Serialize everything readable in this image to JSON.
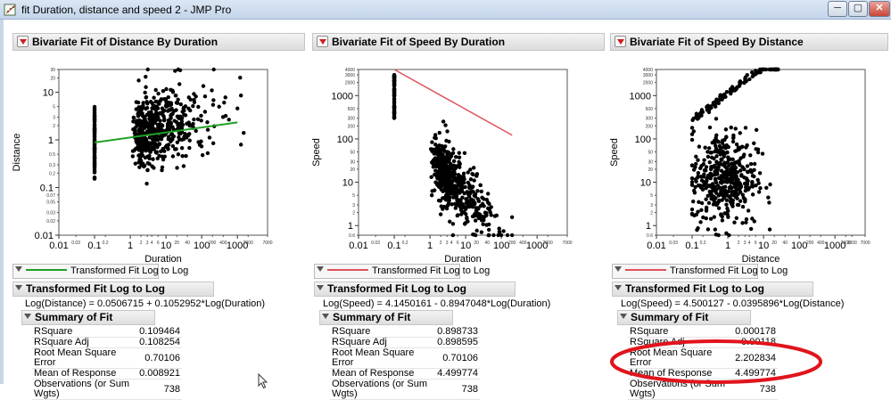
{
  "window": {
    "title": "fit Duration, distance and speed 2 - JMP Pro",
    "minimize": "─",
    "maximize": "▢",
    "close": "✕"
  },
  "colors": {
    "green_fit": "#1fa023",
    "red_fit": "#e0525a",
    "annotation": "#e1141c"
  },
  "panels": [
    {
      "title": "Bivariate Fit of Distance By Duration",
      "xlabel": "Duration",
      "ylabel": "Distance",
      "fit_color": "#1fa023",
      "fit_label": "Transformed Fit Log to Log",
      "fit_header": "Transformed Fit Log to Log",
      "equation": "Log(Distance) = 0.0506715 + 0.1052952*Log(Duration)",
      "summary_title": "Summary of Fit",
      "summary": [
        {
          "label": "RSquare",
          "value": "0.109464"
        },
        {
          "label": "RSquare Adj",
          "value": "0.108254"
        },
        {
          "label": "Root Mean Square Error",
          "value": "0.70106"
        },
        {
          "label": "Mean of Response",
          "value": "0.008921"
        },
        {
          "label": "Observations (or Sum Wgts)",
          "value": "738"
        }
      ]
    },
    {
      "title": "Bivariate Fit of Speed By Duration",
      "xlabel": "Duration",
      "ylabel": "Speed",
      "fit_color": "#e0525a",
      "fit_label": "Transformed Fit Log to Log",
      "fit_header": "Transformed Fit Log to Log",
      "equation": "Log(Speed) = 4.1450161 - 0.8947048*Log(Duration)",
      "summary_title": "Summary of Fit",
      "summary": [
        {
          "label": "RSquare",
          "value": "0.898733"
        },
        {
          "label": "RSquare Adj",
          "value": "0.898595"
        },
        {
          "label": "Root Mean Square Error",
          "value": "0.70106"
        },
        {
          "label": "Mean of Response",
          "value": "4.499774"
        },
        {
          "label": "Observations (or Sum Wgts)",
          "value": "738"
        }
      ]
    },
    {
      "title": "Bivariate Fit of Speed By Distance",
      "xlabel": "Distance",
      "ylabel": "Speed",
      "fit_color": "#e0525a",
      "fit_label": "Transformed Fit Log to Log",
      "fit_header": "Transformed Fit Log to Log",
      "equation": "Log(Speed) = 4.500127 - 0.0395896*Log(Distance)",
      "summary_title": "Summary of Fit",
      "summary": [
        {
          "label": "RSquare",
          "value": "0.000178"
        },
        {
          "label": "RSquare Adj",
          "value": "-0.00118"
        },
        {
          "label": "Root Mean Square Error",
          "value": "2.202834"
        },
        {
          "label": "Mean of Response",
          "value": "4.499774"
        },
        {
          "label": "Observations (or Sum Wgts)",
          "value": "738"
        }
      ]
    }
  ],
  "chart_data": [
    {
      "type": "scatter",
      "title": "Bivariate Fit of Distance By Duration",
      "xlabel": "Duration",
      "ylabel": "Distance",
      "xscale": "log",
      "yscale": "log",
      "xlim": [
        0.01,
        7000
      ],
      "ylim": [
        0.01,
        30
      ],
      "xticks_major": [
        "0.01",
        "0.1",
        "1",
        "10",
        "100",
        "1000"
      ],
      "xticks_minor": [
        "0.03",
        "0.2",
        "2",
        "3",
        "4",
        "6",
        "20",
        "40",
        "200",
        "400",
        "2000",
        "7000"
      ],
      "yticks_major": [
        "0.01",
        "0.1",
        "1",
        "10"
      ],
      "yticks_minor": [
        "0.02",
        "0.03",
        "0.05",
        "0.07",
        "0.2",
        "0.3",
        "0.5",
        "2",
        "3",
        "5",
        "20",
        "30"
      ],
      "grid": false,
      "fit_line": {
        "intercept_log": 0.0506715,
        "slope_log": 0.1052952,
        "x_range": [
          0.1,
          1000
        ],
        "color": "#1fa023"
      },
      "clusters": [
        {
          "desc": "vertical strip at Duration 0.1",
          "x": 0.1,
          "y_range": [
            0.15,
            5
          ]
        },
        {
          "desc": "main cloud",
          "x_range": [
            0.8,
            1500
          ],
          "y_range": [
            0.12,
            30
          ],
          "y_center": 1.5
        }
      ],
      "points_note": "738 observations"
    },
    {
      "type": "scatter",
      "title": "Bivariate Fit of Speed By Duration",
      "xlabel": "Duration",
      "ylabel": "Speed",
      "xscale": "log",
      "yscale": "log",
      "xlim": [
        0.01,
        7000
      ],
      "ylim": [
        0.6,
        4000
      ],
      "xticks_major": [
        "0.01",
        "0.1",
        "1",
        "10",
        "100",
        "1000"
      ],
      "xticks_minor": [
        "0.03",
        "0.2",
        "2",
        "3",
        "4",
        "6",
        "20",
        "40",
        "200",
        "400",
        "2000",
        "7000"
      ],
      "yticks_major": [
        "1",
        "10",
        "100",
        "1000"
      ],
      "yticks_minor": [
        "0.6",
        "2",
        "3",
        "5",
        "20",
        "30",
        "50",
        "200",
        "300",
        "500",
        "2000",
        "3000",
        "4000"
      ],
      "grid": false,
      "fit_line": {
        "intercept_log": 4.1450161,
        "slope_log": -0.8947048,
        "x_range": [
          0.1,
          200
        ],
        "color": "#e0525a"
      },
      "clusters": [
        {
          "desc": "vertical strip at Duration 0.1",
          "x": 0.1,
          "y_range": [
            300,
            3000
          ]
        },
        {
          "desc": "descending cloud",
          "x_range": [
            0.8,
            200
          ],
          "y_range": [
            0.6,
            60
          ]
        }
      ],
      "points_note": "738 observations"
    },
    {
      "type": "scatter",
      "title": "Bivariate Fit of Speed By Distance",
      "xlabel": "Distance",
      "ylabel": "Speed",
      "xscale": "log",
      "yscale": "log",
      "xlim": [
        0.01,
        7000
      ],
      "ylim": [
        0.6,
        4000
      ],
      "xticks_major": [
        "0.01",
        "0.1",
        "1",
        "10",
        "100",
        "1000"
      ],
      "xticks_minor": [
        "0.03",
        "0.2",
        "2",
        "3",
        "4",
        "6",
        "20",
        "40",
        "200",
        "400",
        "2000",
        "3000",
        "7000"
      ],
      "yticks_major": [
        "1",
        "10",
        "100",
        "1000"
      ],
      "yticks_minor": [
        "0.6",
        "2",
        "3",
        "5",
        "20",
        "30",
        "50",
        "200",
        "300",
        "500",
        "2000",
        "3000",
        "4000"
      ],
      "grid": false,
      "fit_line": {
        "intercept_log": 4.500127,
        "slope_log": -0.0395896,
        "x_range": [
          0.01,
          30
        ],
        "color": "#e0525a"
      },
      "clusters": [
        {
          "desc": "diagonal band",
          "x_range": [
            0.1,
            30
          ],
          "y_range": [
            100,
            3000
          ]
        },
        {
          "desc": "main cloud",
          "x_range": [
            0.1,
            30
          ],
          "y_range": [
            0.6,
            150
          ]
        }
      ],
      "points_note": "738 observations"
    }
  ]
}
